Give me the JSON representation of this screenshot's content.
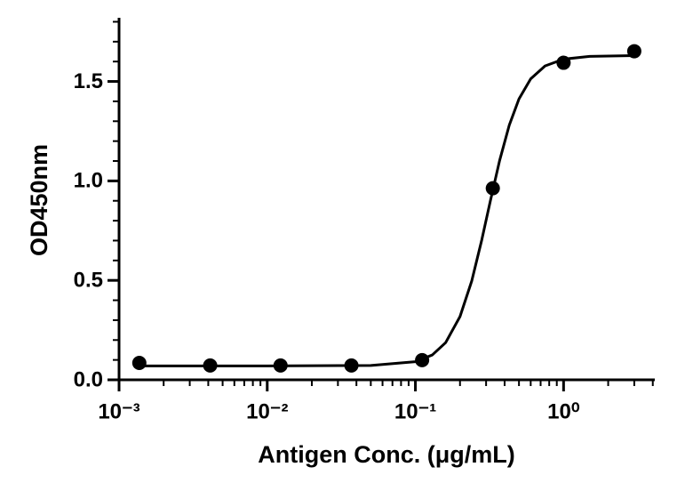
{
  "chart_data": {
    "type": "scatter",
    "x_label": "Antigen Conc. (μg/mL)",
    "y_label": "OD450nm",
    "x_log": true,
    "xlim": [
      0.001,
      4.07
    ],
    "xticks": [
      {
        "value": 0.001,
        "label": "10⁻³"
      },
      {
        "value": 0.01,
        "label": "10⁻²"
      },
      {
        "value": 0.1,
        "label": "10⁻¹"
      },
      {
        "value": 1,
        "label": "10⁰"
      }
    ],
    "ylim": [
      0,
      1.82
    ],
    "yticks": [
      {
        "value": 0,
        "label": "0.0"
      },
      {
        "value": 0.5,
        "label": "0.5"
      },
      {
        "value": 1,
        "label": "1.0"
      },
      {
        "value": 1.5,
        "label": "1.5"
      }
    ],
    "series": [
      {
        "mode": "markers",
        "color": "#000000",
        "x": [
          0.00137,
          0.00412,
          0.0123,
          0.037,
          0.111,
          0.333,
          1,
          3
        ],
        "values": [
          0.085,
          0.072,
          0.072,
          0.072,
          0.099,
          0.963,
          1.594,
          1.652
        ]
      },
      {
        "mode": "line",
        "color": "#000000",
        "x": [
          0.00137,
          0.01,
          0.05,
          0.1,
          0.13,
          0.16,
          0.2,
          0.24,
          0.28,
          0.32,
          0.37,
          0.43,
          0.5,
          0.6,
          0.75,
          1,
          1.5,
          3
        ],
        "values": [
          0.07,
          0.07,
          0.072,
          0.091,
          0.125,
          0.187,
          0.318,
          0.497,
          0.701,
          0.897,
          1.102,
          1.28,
          1.412,
          1.513,
          1.578,
          1.612,
          1.626,
          1.63
        ]
      }
    ]
  }
}
